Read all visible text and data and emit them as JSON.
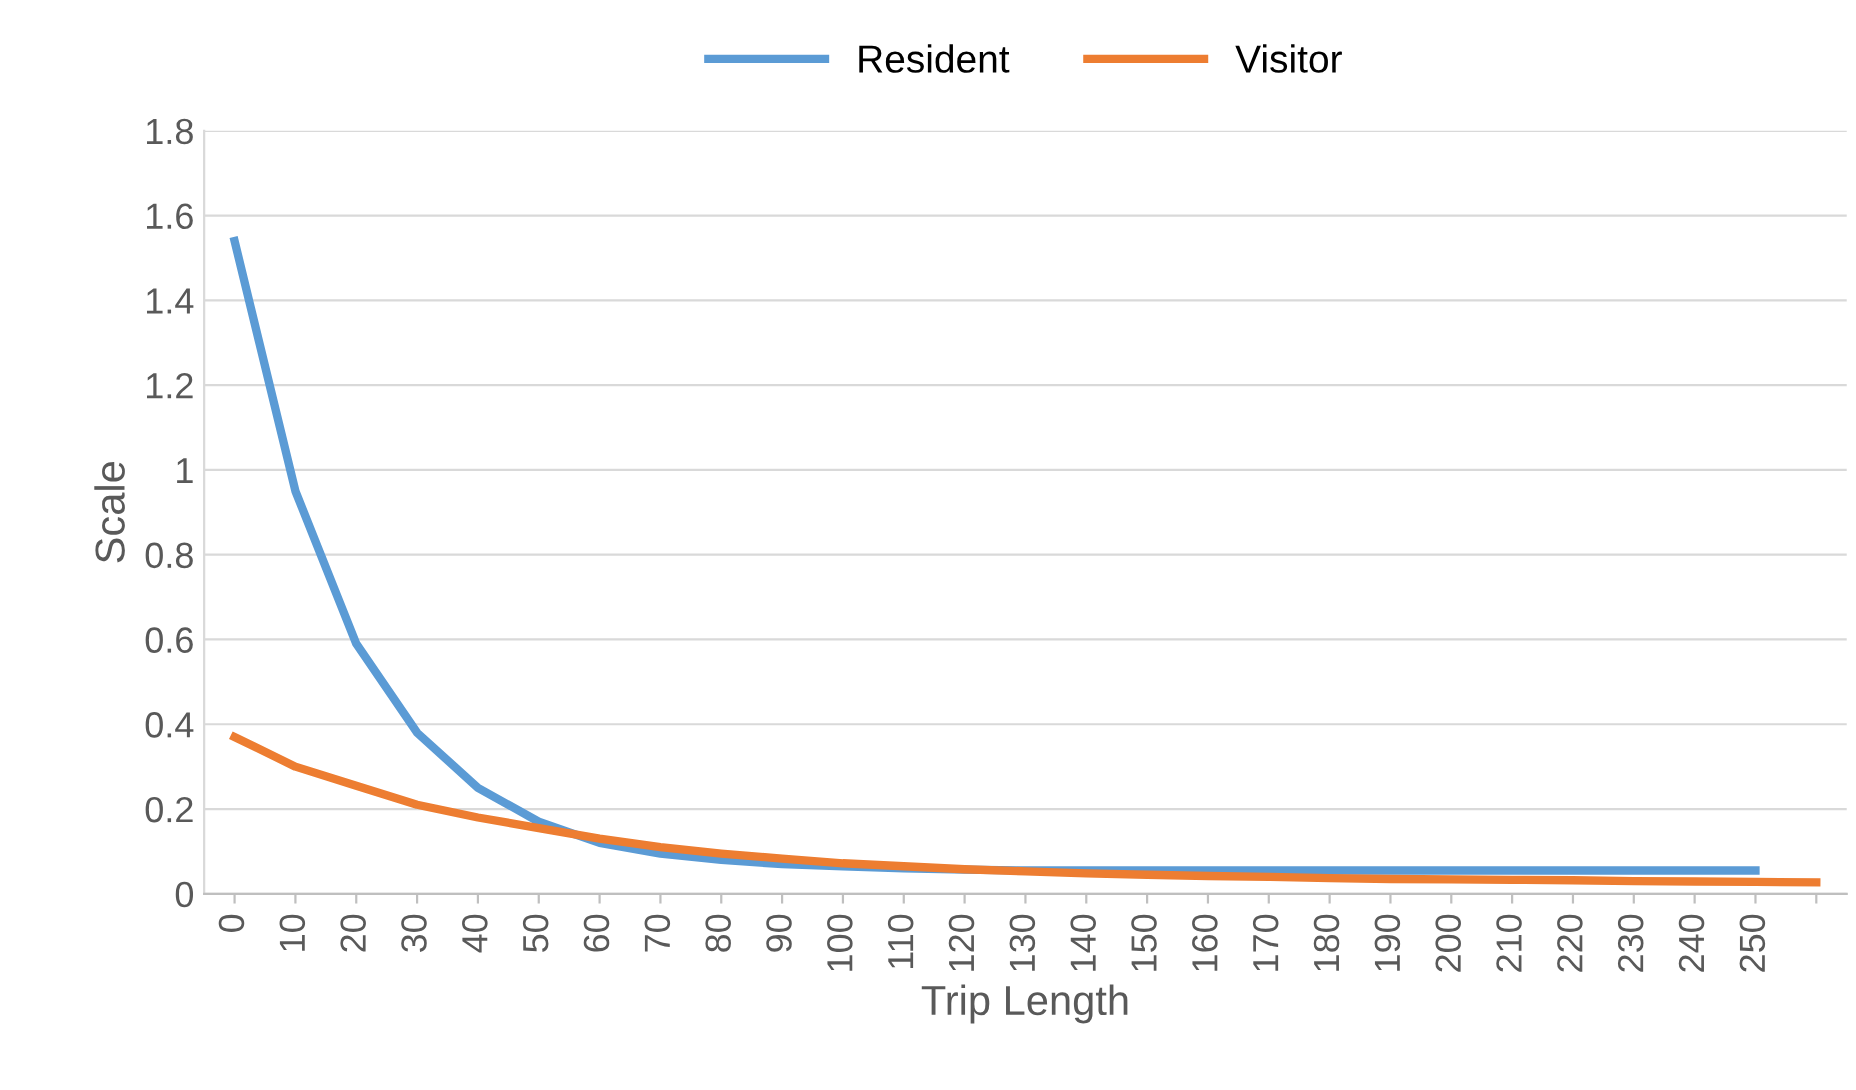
{
  "chart_data": {
    "type": "line",
    "xlabel": "Trip Length",
    "ylabel": "Scale",
    "categories": [
      "0",
      "10",
      "20",
      "30",
      "40",
      "50",
      "60",
      "70",
      "80",
      "90",
      "100",
      "110",
      "120",
      "130",
      "140",
      "150",
      "160",
      "170",
      "180",
      "190",
      "200",
      "210",
      "220",
      "230",
      "240",
      "250",
      null
    ],
    "series": [
      {
        "name": "Resident",
        "color": "#5b9bd5",
        "values": [
          1.54,
          0.95,
          0.59,
          0.38,
          0.25,
          0.17,
          0.12,
          0.095,
          0.08,
          0.07,
          0.065,
          0.06,
          0.057,
          0.055,
          0.055,
          0.055,
          0.055,
          0.055,
          0.055,
          0.055,
          0.055,
          0.055,
          0.055,
          0.055,
          0.055,
          0.055,
          null
        ]
      },
      {
        "name": "Visitor",
        "color": "#ed7d31",
        "values": [
          0.37,
          0.3,
          0.255,
          0.21,
          0.18,
          0.155,
          0.13,
          0.11,
          0.095,
          0.083,
          0.072,
          0.065,
          0.058,
          0.053,
          0.048,
          0.045,
          0.042,
          0.04,
          0.037,
          0.035,
          0.034,
          0.033,
          0.032,
          0.03,
          0.029,
          0.028,
          0.027
        ]
      }
    ],
    "ylim": [
      0,
      1.8
    ],
    "yticks": [
      0,
      0.2,
      0.4,
      0.6,
      0.8,
      1,
      1.2,
      1.4,
      1.6,
      1.8
    ],
    "grid": "y",
    "legend": "top",
    "marker": "none",
    "line_style": "solid"
  }
}
